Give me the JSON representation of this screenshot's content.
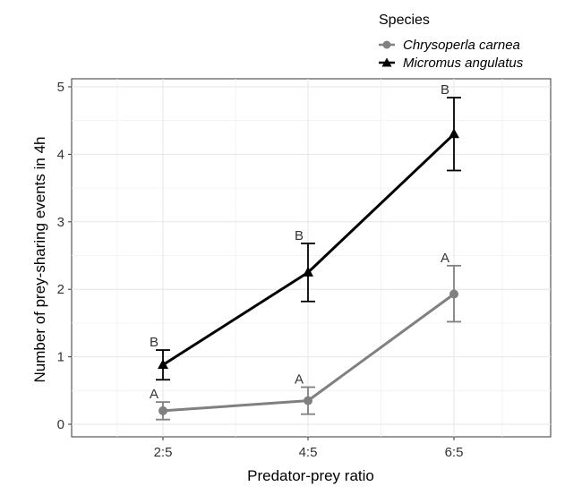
{
  "chart_data": {
    "type": "line",
    "xlabel": "Predator-prey ratio",
    "ylabel": "Number of prey-sharing events in 4h",
    "categories": [
      "2:5",
      "4:5",
      "6:5"
    ],
    "ylim": [
      -0.15,
      5.0
    ],
    "yticks": [
      0,
      1,
      2,
      3,
      4,
      5
    ],
    "grid": true,
    "legend": {
      "title": "Species",
      "position": "top-right",
      "entries": [
        "Chrysoperla carnea",
        "Micromus angulatus"
      ]
    },
    "series": [
      {
        "name": "Chrysoperla carnea",
        "marker": "circle",
        "color": "#808080",
        "values": [
          0.2,
          0.35,
          1.93
        ],
        "error_low": [
          0.07,
          0.15,
          1.52
        ],
        "error_high": [
          0.33,
          0.55,
          2.35
        ],
        "labels": [
          "A",
          "A",
          "A"
        ]
      },
      {
        "name": "Micromus angulatus",
        "marker": "triangle",
        "color": "#000000",
        "values": [
          0.88,
          2.25,
          4.3
        ],
        "error_low": [
          0.66,
          1.82,
          3.76
        ],
        "error_high": [
          1.1,
          2.68,
          4.84
        ],
        "labels": [
          "B",
          "B",
          "B"
        ]
      }
    ]
  }
}
